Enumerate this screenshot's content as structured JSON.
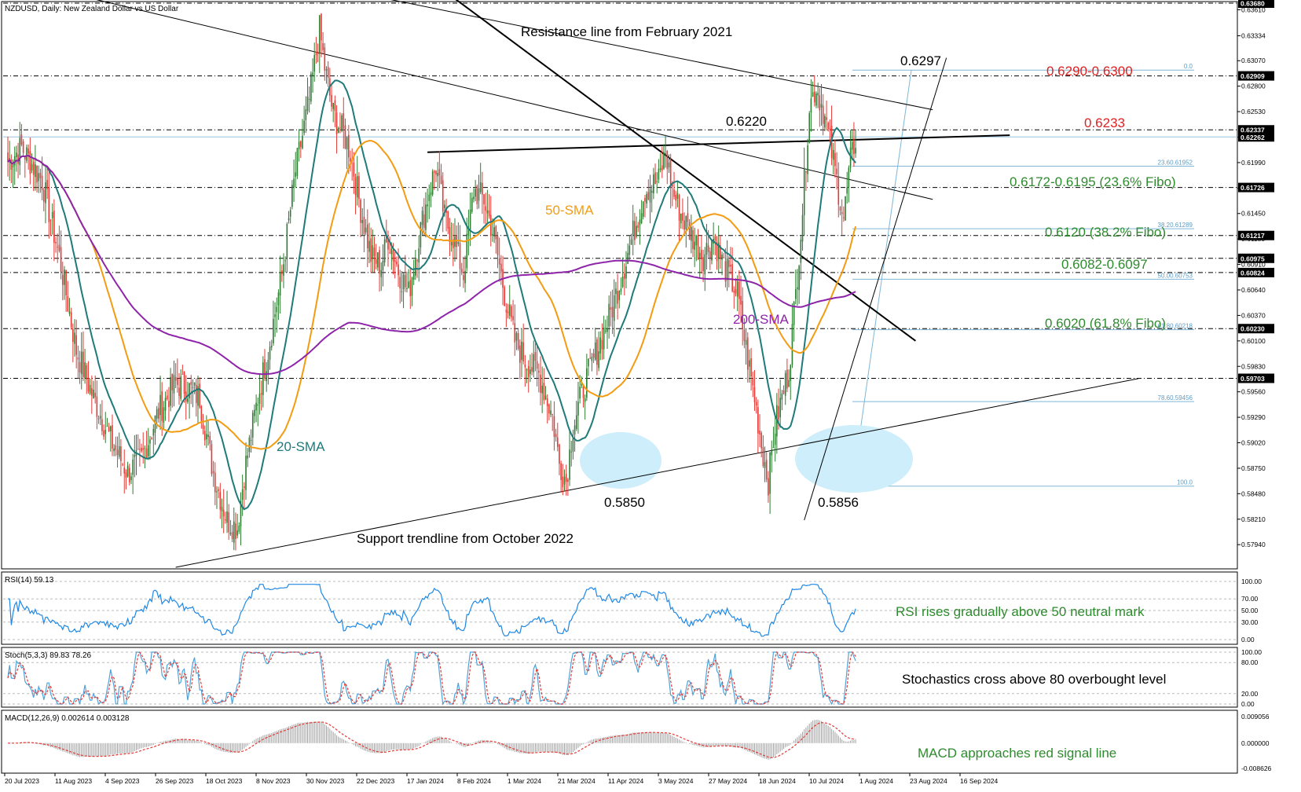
{
  "header": {
    "symbol_title": "NZDUSD, Daily:  New Zealand Dollar vs US Dollar"
  },
  "colors": {
    "bull": "#2e7d32",
    "bear": "#e53935",
    "sma20": "#1f7a7a",
    "sma50": "#f39c12",
    "sma200": "#8e24aa",
    "red_annotation": "#e02020",
    "green_annotation": "#2e8b2e",
    "fibo": "#7fb6d6",
    "highlight": "#cdeefa"
  },
  "chart_data": [
    {
      "type": "candlestick",
      "title": "NZDUSD, Daily:  New Zealand Dollar vs US Dollar",
      "ylim": [
        0.577,
        0.6368
      ],
      "y_ticks": [
        "0.63610",
        "0.63334",
        "0.63070",
        "0.62800",
        "0.62530",
        "0.62260",
        "0.61990",
        "0.61720",
        "0.61450",
        "0.61180",
        "0.60910",
        "0.60640",
        "0.60370",
        "0.60100",
        "0.59830",
        "0.59560",
        "0.59290",
        "0.59020",
        "0.58750",
        "0.58480",
        "0.58210",
        "0.57940"
      ],
      "y_tick_values": [
        0.6361,
        0.63334,
        0.6307,
        0.628,
        0.6253,
        0.6226,
        0.6199,
        0.6172,
        0.6145,
        0.6118,
        0.6091,
        0.6064,
        0.6037,
        0.601,
        0.5983,
        0.5956,
        0.5929,
        0.5902,
        0.5875,
        0.5848,
        0.5821,
        0.5794
      ],
      "x_tick_labels": [
        "20 Jul 2023",
        "11 Aug 2023",
        "4 Sep 2023",
        "26 Sep 2023",
        "18 Oct 2023",
        "8 Nov 2023",
        "30 Nov 2023",
        "22 Dec 2023",
        "17 Jan 2024",
        "8 Feb 2024",
        "1 Mar 2024",
        "21 Mar 2024",
        "11 Apr 2024",
        "3 May 2024",
        "27 May 2024",
        "18 Jun 2024",
        "10 Jul 2024",
        "1 Aug 2024",
        "23 Aug 2024",
        "16 Sep 2024"
      ],
      "price_path": [
        [
          0,
          0.62
        ],
        [
          8,
          0.6215
        ],
        [
          20,
          0.618
        ],
        [
          30,
          0.61
        ],
        [
          40,
          0.6
        ],
        [
          50,
          0.595
        ],
        [
          60,
          0.5905
        ],
        [
          70,
          0.587
        ],
        [
          78,
          0.5885
        ],
        [
          88,
          0.5935
        ],
        [
          98,
          0.5965
        ],
        [
          105,
          0.596
        ],
        [
          112,
          0.595
        ],
        [
          120,
          0.587
        ],
        [
          128,
          0.582
        ],
        [
          134,
          0.5812
        ],
        [
          138,
          0.587
        ],
        [
          146,
          0.595
        ],
        [
          152,
          0.6
        ],
        [
          160,
          0.608
        ],
        [
          168,
          0.619
        ],
        [
          176,
          0.6265
        ],
        [
          182,
          0.634
        ],
        [
          185,
          0.63
        ],
        [
          190,
          0.625
        ],
        [
          196,
          0.623
        ],
        [
          200,
          0.621
        ],
        [
          206,
          0.615
        ],
        [
          212,
          0.61
        ],
        [
          218,
          0.609
        ],
        [
          222,
          0.612
        ],
        [
          228,
          0.6085
        ],
        [
          234,
          0.606
        ],
        [
          240,
          0.612
        ],
        [
          246,
          0.617
        ],
        [
          250,
          0.6195
        ],
        [
          255,
          0.614
        ],
        [
          260,
          0.612
        ],
        [
          266,
          0.608
        ],
        [
          272,
          0.617
        ],
        [
          278,
          0.616
        ],
        [
          284,
          0.612
        ],
        [
          290,
          0.606
        ],
        [
          296,
          0.601
        ],
        [
          302,
          0.599
        ],
        [
          310,
          0.5975
        ],
        [
          318,
          0.593
        ],
        [
          322,
          0.588
        ],
        [
          326,
          0.5862
        ],
        [
          330,
          0.592
        ],
        [
          336,
          0.596
        ],
        [
          344,
          0.6
        ],
        [
          352,
          0.604
        ],
        [
          360,
          0.609
        ],
        [
          366,
          0.613
        ],
        [
          372,
          0.617
        ],
        [
          380,
          0.618
        ],
        [
          384,
          0.621
        ],
        [
          388,
          0.617
        ],
        [
          394,
          0.614
        ],
        [
          400,
          0.612
        ],
        [
          406,
          0.61
        ],
        [
          412,
          0.612
        ],
        [
          418,
          0.609
        ],
        [
          426,
          0.606
        ],
        [
          432,
          0.599
        ],
        [
          436,
          0.595
        ],
        [
          440,
          0.59
        ],
        [
          444,
          0.5862
        ],
        [
          448,
          0.592
        ],
        [
          452,
          0.595
        ],
        [
          456,
          0.598
        ],
        [
          460,
          0.606
        ],
        [
          464,
          0.615
        ],
        [
          468,
          0.626
        ],
        [
          472,
          0.628
        ],
        [
          476,
          0.6255
        ],
        [
          480,
          0.622
        ],
        [
          484,
          0.618
        ],
        [
          488,
          0.614
        ],
        [
          492,
          0.62
        ],
        [
          495,
          0.6225
        ]
      ],
      "price_path_note": "",
      "levels": [
        {
          "value": 0.6368,
          "label": "0.63680",
          "style": "dash-dot"
        },
        {
          "value": 0.62909,
          "label": "0.62909",
          "style": "dash-dot"
        },
        {
          "value": 0.62337,
          "label": "0.62337",
          "style": "dash-dot"
        },
        {
          "value": 0.62262,
          "label": "0.62262",
          "style": "solid-light"
        },
        {
          "value": 0.61726,
          "label": "0.61726",
          "style": "dash-dot"
        },
        {
          "value": 0.61217,
          "label": "0.61217",
          "style": "dash-dot"
        },
        {
          "value": 0.60975,
          "label": "0.60975",
          "style": "dash-dot"
        },
        {
          "value": 0.60824,
          "label": "0.60824",
          "style": "dash-dot"
        },
        {
          "value": 0.6023,
          "label": "0.60230",
          "style": "dash-dot"
        },
        {
          "value": 0.59703,
          "label": "0.59703",
          "style": "dash-dot"
        }
      ],
      "fibo_levels": [
        {
          "label": "0.0",
          "value": 0.6297
        },
        {
          "label": "23.60.61952",
          "value": 0.61952
        },
        {
          "label": "38.20.61289",
          "value": 0.61289
        },
        {
          "label": "50.00.60753",
          "value": 0.60753
        },
        {
          "label": "61.80.60218",
          "value": 0.60218
        },
        {
          "label": "78.60.59456",
          "value": 0.59456
        },
        {
          "label": "100.0",
          "value": 0.5856
        }
      ],
      "annotations": {
        "resistance": "Resistance line from February 2021",
        "support": "Support trendline from October 2022",
        "peak": "0.6297",
        "top_zone": "0.6290-0.6300",
        "level_6233": "0.6233",
        "level_6220": "0.6220",
        "fibo_236": "0.6172-0.6195 (23.6% Fibo)",
        "fibo_382": "0.6120 (38.2% Fibo)",
        "zone_6082": "0.6082-0.6097",
        "fibo_618": "0.6020 (61.8% Fibo)",
        "low_1": "0.5850",
        "low_2": "0.5856",
        "sma20_label": "20-SMA",
        "sma50_label": "50-SMA",
        "sma200_label": "200-SMA"
      },
      "series": [
        {
          "name": "20-SMA",
          "indicator": "SMA",
          "period": 20
        },
        {
          "name": "50-SMA",
          "indicator": "SMA",
          "period": 50
        },
        {
          "name": "200-SMA",
          "indicator": "SMA",
          "period": 200
        }
      ]
    },
    {
      "type": "line",
      "title": "RSI(14) 59.13",
      "ylim": [
        0,
        100
      ],
      "y_ticks": [
        "100.00",
        "70.00",
        "50.00",
        "30.00",
        "0.00"
      ],
      "y_tick_values": [
        100,
        70,
        50,
        30,
        0
      ],
      "annotation": "RSI rises gradually above 50 neutral mark"
    },
    {
      "type": "line",
      "title": "Stoch(5,3,3) 89.83 78.26",
      "ylim": [
        0,
        100
      ],
      "y_ticks": [
        "100.00",
        "80.00",
        "20.00",
        "0.00"
      ],
      "y_tick_values": [
        100,
        80,
        20,
        0
      ],
      "annotation": "Stochastics cross above 80 overbought level"
    },
    {
      "type": "bar",
      "title": "MACD(12,26,9) 0.002614 0.003128",
      "ylim": [
        -0.008626,
        0.009056
      ],
      "y_ticks": [
        "0.009056",
        "0.000000",
        "-0.008626"
      ],
      "y_tick_values": [
        0.009056,
        0,
        -0.008626
      ],
      "annotation": "MACD approaches red signal line"
    }
  ]
}
